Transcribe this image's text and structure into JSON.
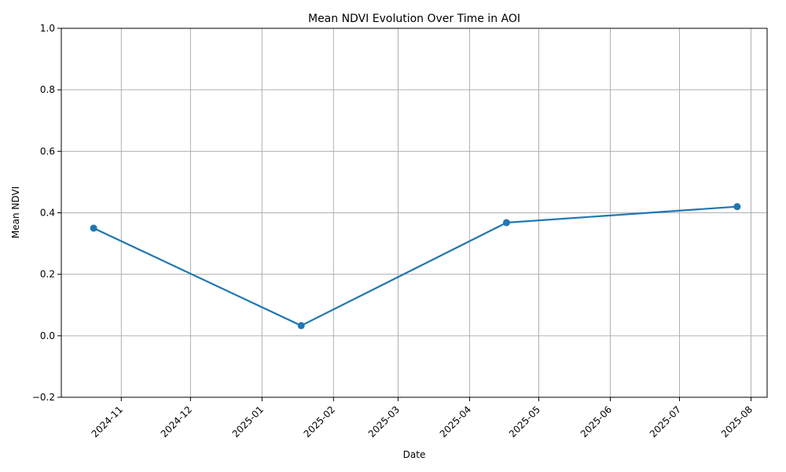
{
  "chart_data": {
    "type": "line",
    "title": "Mean NDVI Evolution Over Time in AOI",
    "xlabel": "Date",
    "ylabel": "Mean NDVI",
    "x_tick_labels": [
      "2024-11",
      "2024-12",
      "2025-01",
      "2025-02",
      "2025-03",
      "2025-04",
      "2025-05",
      "2025-06",
      "2025-07",
      "2025-08"
    ],
    "y_tick_labels": [
      "-0.2",
      "0.0",
      "0.2",
      "0.4",
      "0.6",
      "0.8",
      "1.0"
    ],
    "ylim": [
      -0.2,
      1.0
    ],
    "xlim": [
      "2024-10-06",
      "2025-08-08"
    ],
    "grid": true,
    "series": [
      {
        "color": "#1f77b4",
        "points": [
          {
            "x": "2024-10-20",
            "y": 0.35
          },
          {
            "x": "2025-01-18",
            "y": 0.033
          },
          {
            "x": "2025-04-17",
            "y": 0.368
          },
          {
            "x": "2025-07-26",
            "y": 0.42
          }
        ]
      }
    ]
  }
}
